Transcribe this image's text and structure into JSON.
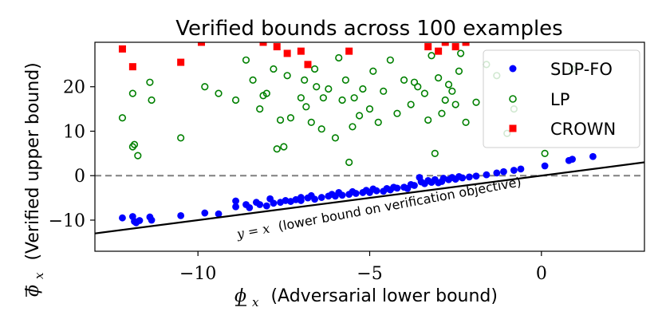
{
  "chart_data": {
    "type": "scatter",
    "title": "Verified bounds across 100 examples",
    "xlabel_symbol": "ϕ",
    "xlabel_sub": "x",
    "xlabel_text": "(Adversarial lower bound)",
    "ylabel_symbol": "ϕ",
    "ylabel_sub": "x",
    "ylabel_text": "(Verified upper bound)",
    "xlim": [
      -13,
      3
    ],
    "ylim": [
      -17,
      30
    ],
    "xticks": [
      -10,
      -5,
      0
    ],
    "xtick_labels": [
      "−10",
      "−5",
      "0"
    ],
    "yticks": [
      -10,
      0,
      10,
      20
    ],
    "ytick_labels": [
      "−10",
      "0",
      "10",
      "20"
    ],
    "reference_line": {
      "label": "y = x (lower bound on verification objective)",
      "label_math": "y = x",
      "label_text": "(lower bound on verification objective)",
      "slope": 1,
      "intercept": 0
    },
    "zero_line": {
      "y": 0,
      "style": "dashed"
    },
    "legend_position": "top-right",
    "series": [
      {
        "name": "SDP-FO",
        "color": "#0000ff",
        "marker": "filled-circle",
        "points": [
          [
            -12.2,
            -9.5
          ],
          [
            -11.9,
            -9.2
          ],
          [
            -11.85,
            -10.3
          ],
          [
            -11.8,
            -10.6
          ],
          [
            -11.7,
            -10.1
          ],
          [
            -11.4,
            -9.3
          ],
          [
            -11.35,
            -10.0
          ],
          [
            -10.5,
            -9.0
          ],
          [
            -9.8,
            -8.4
          ],
          [
            -9.4,
            -8.6
          ],
          [
            -8.9,
            -7.0
          ],
          [
            -8.6,
            -6.5
          ],
          [
            -8.5,
            -7.2
          ],
          [
            -8.2,
            -6.5
          ],
          [
            -8.0,
            -6.8
          ],
          [
            -7.8,
            -6.2
          ],
          [
            -7.6,
            -6.0
          ],
          [
            -7.45,
            -5.6
          ],
          [
            -7.3,
            -5.8
          ],
          [
            -7.15,
            -5.4
          ],
          [
            -7.0,
            -5.6
          ],
          [
            -6.8,
            -5.0
          ],
          [
            -6.6,
            -5.3
          ],
          [
            -6.4,
            -4.9
          ],
          [
            -6.2,
            -4.6
          ],
          [
            -6.0,
            -4.6
          ],
          [
            -5.8,
            -4.4
          ],
          [
            -5.6,
            -4.2
          ],
          [
            -5.4,
            -4.0
          ],
          [
            -5.2,
            -3.8
          ],
          [
            -5.0,
            -3.8
          ],
          [
            -4.8,
            -3.4
          ],
          [
            -4.6,
            -3.5
          ],
          [
            -4.4,
            -3.2
          ],
          [
            -4.2,
            -2.8
          ],
          [
            -4.0,
            -2.6
          ],
          [
            -3.9,
            -2.9
          ],
          [
            -3.7,
            -2.2
          ],
          [
            -3.55,
            -0.4
          ],
          [
            -3.4,
            -1.8
          ],
          [
            -3.2,
            -1.5
          ],
          [
            -3.0,
            -1.6
          ],
          [
            -2.9,
            -1.3
          ],
          [
            -2.7,
            -0.9
          ],
          [
            -2.5,
            -0.8
          ],
          [
            -2.3,
            -0.5
          ],
          [
            -2.1,
            -0.3
          ],
          [
            -1.9,
            -0.1
          ],
          [
            -1.6,
            0.2
          ],
          [
            -1.3,
            0.6
          ],
          [
            -1.1,
            0.9
          ],
          [
            -0.8,
            1.2
          ],
          [
            -0.6,
            1.5
          ],
          [
            0.1,
            2.2
          ],
          [
            0.8,
            3.4
          ],
          [
            0.9,
            3.7
          ],
          [
            1.5,
            4.3
          ],
          [
            -8.9,
            -5.7
          ],
          [
            -8.3,
            -6.0
          ],
          [
            -7.9,
            -5.2
          ],
          [
            -7.0,
            -4.9
          ],
          [
            -6.7,
            -4.5
          ],
          [
            -6.1,
            -4.2
          ],
          [
            -5.9,
            -3.8
          ],
          [
            -5.5,
            -3.6
          ],
          [
            -5.1,
            -3.3
          ],
          [
            -4.9,
            -3.0
          ],
          [
            -4.5,
            -2.9
          ],
          [
            -4.3,
            -2.6
          ],
          [
            -3.8,
            -2.0
          ],
          [
            -3.5,
            -1.4
          ],
          [
            -3.3,
            -1.1
          ],
          [
            -3.1,
            -0.9
          ],
          [
            -2.85,
            -0.6
          ],
          [
            -2.6,
            -0.4
          ],
          [
            -2.4,
            -0.2
          ]
        ]
      },
      {
        "name": "LP",
        "color": "#008000",
        "marker": "open-circle",
        "points": [
          [
            -12.2,
            13.0
          ],
          [
            -11.9,
            6.5
          ],
          [
            -11.85,
            7.0
          ],
          [
            -11.75,
            4.5
          ],
          [
            -11.9,
            18.5
          ],
          [
            -11.4,
            21.0
          ],
          [
            -11.35,
            17.0
          ],
          [
            -10.5,
            8.5
          ],
          [
            -9.8,
            20.0
          ],
          [
            -9.4,
            18.5
          ],
          [
            -8.9,
            17.0
          ],
          [
            -8.6,
            26.0
          ],
          [
            -8.4,
            21.5
          ],
          [
            -8.2,
            15.0
          ],
          [
            -8.0,
            18.5
          ],
          [
            -7.8,
            24.0
          ],
          [
            -7.6,
            12.5
          ],
          [
            -7.4,
            22.5
          ],
          [
            -7.3,
            13.0
          ],
          [
            -7.0,
            17.5
          ],
          [
            -6.9,
            21.5
          ],
          [
            -6.7,
            12.0
          ],
          [
            -6.6,
            24.0
          ],
          [
            -6.4,
            10.5
          ],
          [
            -6.2,
            19.5
          ],
          [
            -6.0,
            8.5
          ],
          [
            -5.8,
            17.0
          ],
          [
            -5.7,
            21.5
          ],
          [
            -5.5,
            11.0
          ],
          [
            -5.3,
            13.5
          ],
          [
            -5.2,
            19.5
          ],
          [
            -5.0,
            15.0
          ],
          [
            -4.9,
            23.5
          ],
          [
            -4.6,
            19.0
          ],
          [
            -4.4,
            26.0
          ],
          [
            -4.0,
            21.5
          ],
          [
            -3.8,
            16.0
          ],
          [
            -3.6,
            20.0
          ],
          [
            -3.3,
            12.5
          ],
          [
            -3.1,
            5.0
          ],
          [
            -3.0,
            22.0
          ],
          [
            -2.8,
            17.0
          ],
          [
            -2.6,
            19.0
          ],
          [
            -2.4,
            23.5
          ],
          [
            -2.2,
            12.0
          ],
          [
            -1.9,
            16.5
          ],
          [
            -1.6,
            25.0
          ],
          [
            -1.3,
            22.5
          ],
          [
            -1.0,
            9.5
          ],
          [
            -0.8,
            15.0
          ],
          [
            0.1,
            5.0
          ],
          [
            0.9,
            24.0
          ],
          [
            -8.1,
            18.0
          ],
          [
            -7.7,
            6.0
          ],
          [
            -7.5,
            6.5
          ],
          [
            -6.85,
            15.5
          ],
          [
            -6.55,
            20.0
          ],
          [
            -6.35,
            17.5
          ],
          [
            -5.9,
            26.5
          ],
          [
            -5.6,
            3.0
          ],
          [
            -5.45,
            17.5
          ],
          [
            -4.75,
            12.0
          ],
          [
            -4.2,
            14.0
          ],
          [
            -3.7,
            21.0
          ],
          [
            -3.4,
            18.5
          ],
          [
            -3.2,
            27.0
          ],
          [
            -2.9,
            14.0
          ],
          [
            -2.7,
            20.5
          ],
          [
            -2.5,
            16.0
          ],
          [
            -2.35,
            27.5
          ]
        ]
      },
      {
        "name": "CROWN",
        "color": "#ff0000",
        "marker": "filled-square",
        "points": [
          [
            -12.2,
            28.5
          ],
          [
            -11.9,
            24.5
          ],
          [
            -10.5,
            25.5
          ],
          [
            -9.9,
            30.0
          ],
          [
            -8.1,
            30.0
          ],
          [
            -7.7,
            29.0
          ],
          [
            -7.4,
            27.5
          ],
          [
            -7.0,
            28.0
          ],
          [
            -6.8,
            25.0
          ],
          [
            -5.6,
            28.0
          ],
          [
            -3.3,
            29.0
          ],
          [
            -3.0,
            28.0
          ],
          [
            -2.8,
            30.0
          ],
          [
            -2.5,
            29.0
          ],
          [
            -2.2,
            30.0
          ]
        ]
      }
    ]
  }
}
